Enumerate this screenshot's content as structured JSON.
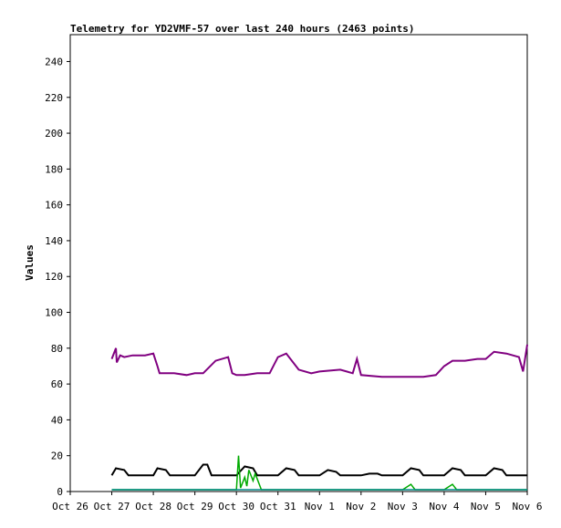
{
  "chart_data": {
    "type": "line",
    "title": "Telemetry for YD2VMF-57 over last 240 hours (2463 points)",
    "xlabel": "",
    "ylabel": "Values",
    "xlim": [
      "Oct 26",
      "Nov 6"
    ],
    "ylim": [
      0,
      255
    ],
    "x_ticks": [
      "Oct 26",
      "Oct 27",
      "Oct 28",
      "Oct 29",
      "Oct 30",
      "Oct 31",
      "Nov 1",
      "Nov 2",
      "Nov 3",
      "Nov 4",
      "Nov 5",
      "Nov 6"
    ],
    "y_ticks": [
      0,
      20,
      40,
      60,
      80,
      100,
      120,
      140,
      160,
      180,
      200,
      220,
      240
    ],
    "grid": false,
    "legend": "none",
    "x_unit": "days since Oct 26",
    "series": [
      {
        "color": "#800080",
        "x": [
          1.0,
          1.1,
          1.12,
          1.2,
          1.3,
          1.5,
          1.8,
          2.0,
          2.1,
          2.15,
          2.5,
          2.8,
          3.0,
          3.2,
          3.5,
          3.8,
          3.9,
          4.0,
          4.2,
          4.5,
          4.8,
          5.0,
          5.2,
          5.5,
          5.8,
          6.0,
          6.5,
          6.8,
          6.9,
          7.0,
          7.5,
          8.0,
          8.5,
          8.8,
          9.0,
          9.2,
          9.5,
          9.8,
          10.0,
          10.2,
          10.5,
          10.8,
          10.9,
          11.0
        ],
        "y": [
          74,
          80,
          72,
          76,
          75,
          76,
          76,
          77,
          70,
          66,
          66,
          65,
          66,
          66,
          73,
          75,
          66,
          65,
          65,
          66,
          66,
          75,
          77,
          68,
          66,
          67,
          68,
          66,
          74,
          65,
          64,
          64,
          64,
          65,
          70,
          73,
          73,
          74,
          74,
          78,
          77,
          75,
          67,
          82
        ]
      },
      {
        "color": "#000000",
        "x": [
          1.0,
          1.1,
          1.3,
          1.4,
          2.0,
          2.1,
          2.3,
          2.4,
          3.0,
          3.2,
          3.3,
          3.4,
          4.0,
          4.2,
          4.4,
          4.5,
          5.0,
          5.2,
          5.4,
          5.5,
          6.0,
          6.2,
          6.4,
          6.5,
          7.0,
          7.2,
          7.4,
          7.5,
          8.0,
          8.2,
          8.4,
          8.5,
          9.0,
          9.2,
          9.4,
          9.5,
          10.0,
          10.2,
          10.4,
          10.5,
          11.0
        ],
        "y": [
          9,
          13,
          12,
          9,
          9,
          13,
          12,
          9,
          9,
          15,
          15,
          9,
          9,
          14,
          13,
          9,
          9,
          13,
          12,
          9,
          9,
          12,
          11,
          9,
          9,
          10,
          10,
          9,
          9,
          13,
          12,
          9,
          9,
          13,
          12,
          9,
          9,
          13,
          12,
          9,
          9
        ]
      },
      {
        "color": "#00aa00",
        "x": [
          1.0,
          2.0,
          3.0,
          4.0,
          4.05,
          4.1,
          4.2,
          4.25,
          4.3,
          4.4,
          4.45,
          4.5,
          4.6,
          5.0,
          6.0,
          7.0,
          8.0,
          8.2,
          8.3,
          9.0,
          9.2,
          9.3,
          10.0,
          11.0
        ],
        "y": [
          1,
          1,
          1,
          1,
          20,
          2,
          8,
          3,
          12,
          6,
          10,
          7,
          1,
          1,
          1,
          1,
          1,
          4,
          1,
          1,
          4,
          1,
          1,
          1
        ]
      },
      {
        "color": "#008888",
        "x": [
          1.0,
          3.0,
          5.0,
          7.0,
          9.0,
          11.0
        ],
        "y": [
          1,
          1,
          1,
          1,
          1,
          1
        ]
      }
    ]
  }
}
